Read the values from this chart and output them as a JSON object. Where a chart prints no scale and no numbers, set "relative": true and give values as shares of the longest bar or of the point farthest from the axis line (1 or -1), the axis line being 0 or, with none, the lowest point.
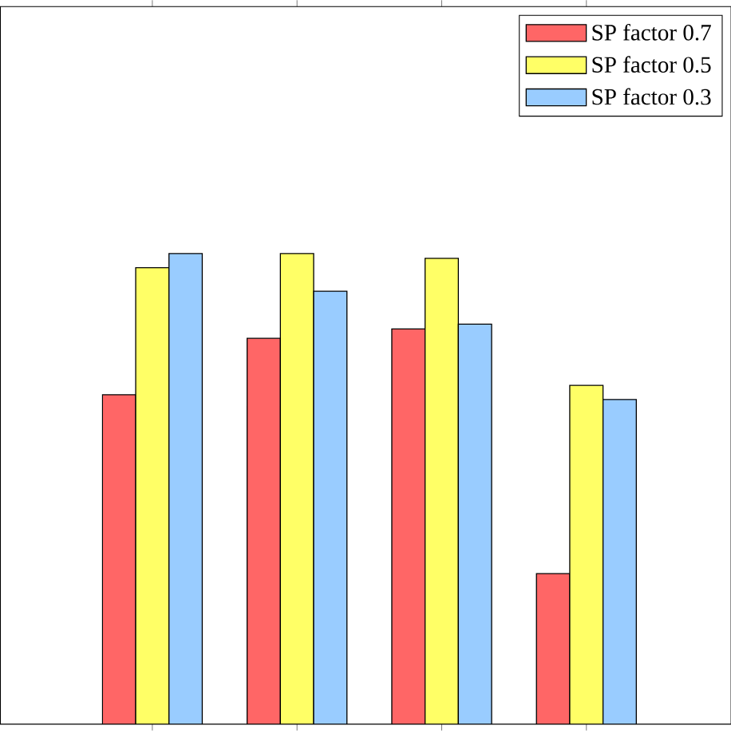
{
  "chart_data": {
    "type": "bar",
    "relative": true,
    "categories": [
      null,
      null,
      null,
      null
    ],
    "series": [
      {
        "name": "SP factor 0.7",
        "color": "#ff6666",
        "values": [
          0.7,
          0.82,
          0.84,
          0.32
        ]
      },
      {
        "name": "SP factor 0.5",
        "color": "#ffff66",
        "values": [
          0.97,
          1.0,
          0.99,
          0.72
        ]
      },
      {
        "name": "SP factor 0.3",
        "color": "#99ccff",
        "values": [
          1.0,
          0.92,
          0.85,
          0.69
        ]
      }
    ],
    "legend": "top right"
  }
}
